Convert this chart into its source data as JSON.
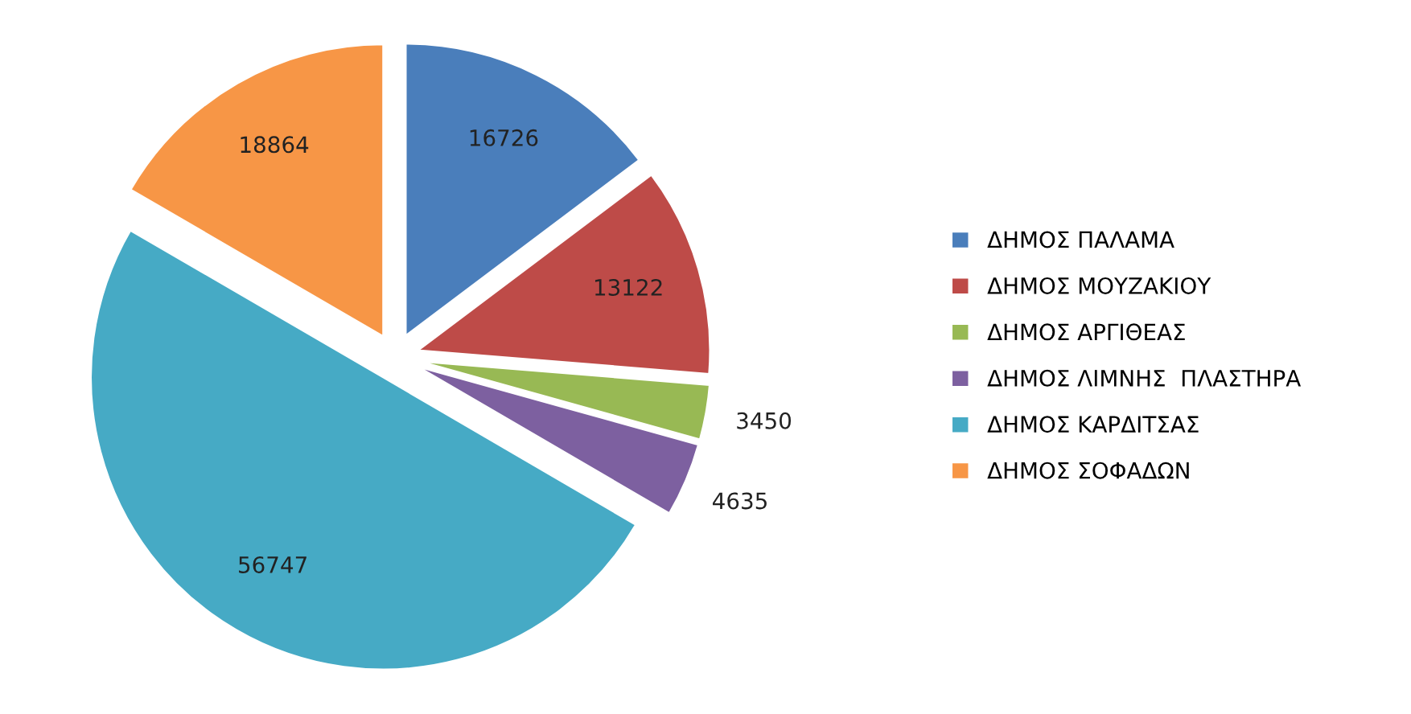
{
  "chart_data": {
    "type": "pie",
    "categories": [
      "ΔΗΜΟΣ ΠΑΛΑΜΑ",
      "ΔΗΜΟΣ ΜΟΥΖΑΚΙΟΥ",
      "ΔΗΜΟΣ ΑΡΓΙΘΕΑΣ",
      "ΔΗΜΟΣ ΛΙΜΝΗΣ  ΠΛΑΣΤΗΡΑ",
      "ΔΗΜΟΣ ΚΑΡΔΙΤΣΑΣ",
      "ΔΗΜΟΣ ΣΟΦΑΔΩΝ"
    ],
    "values": [
      16726,
      13122,
      3450,
      4635,
      56747,
      18864
    ],
    "colors": [
      "#4a7ebb",
      "#be4b48",
      "#98b954",
      "#7d60a0",
      "#46aac5",
      "#f79646"
    ],
    "data_labels": true,
    "legend": "right"
  }
}
